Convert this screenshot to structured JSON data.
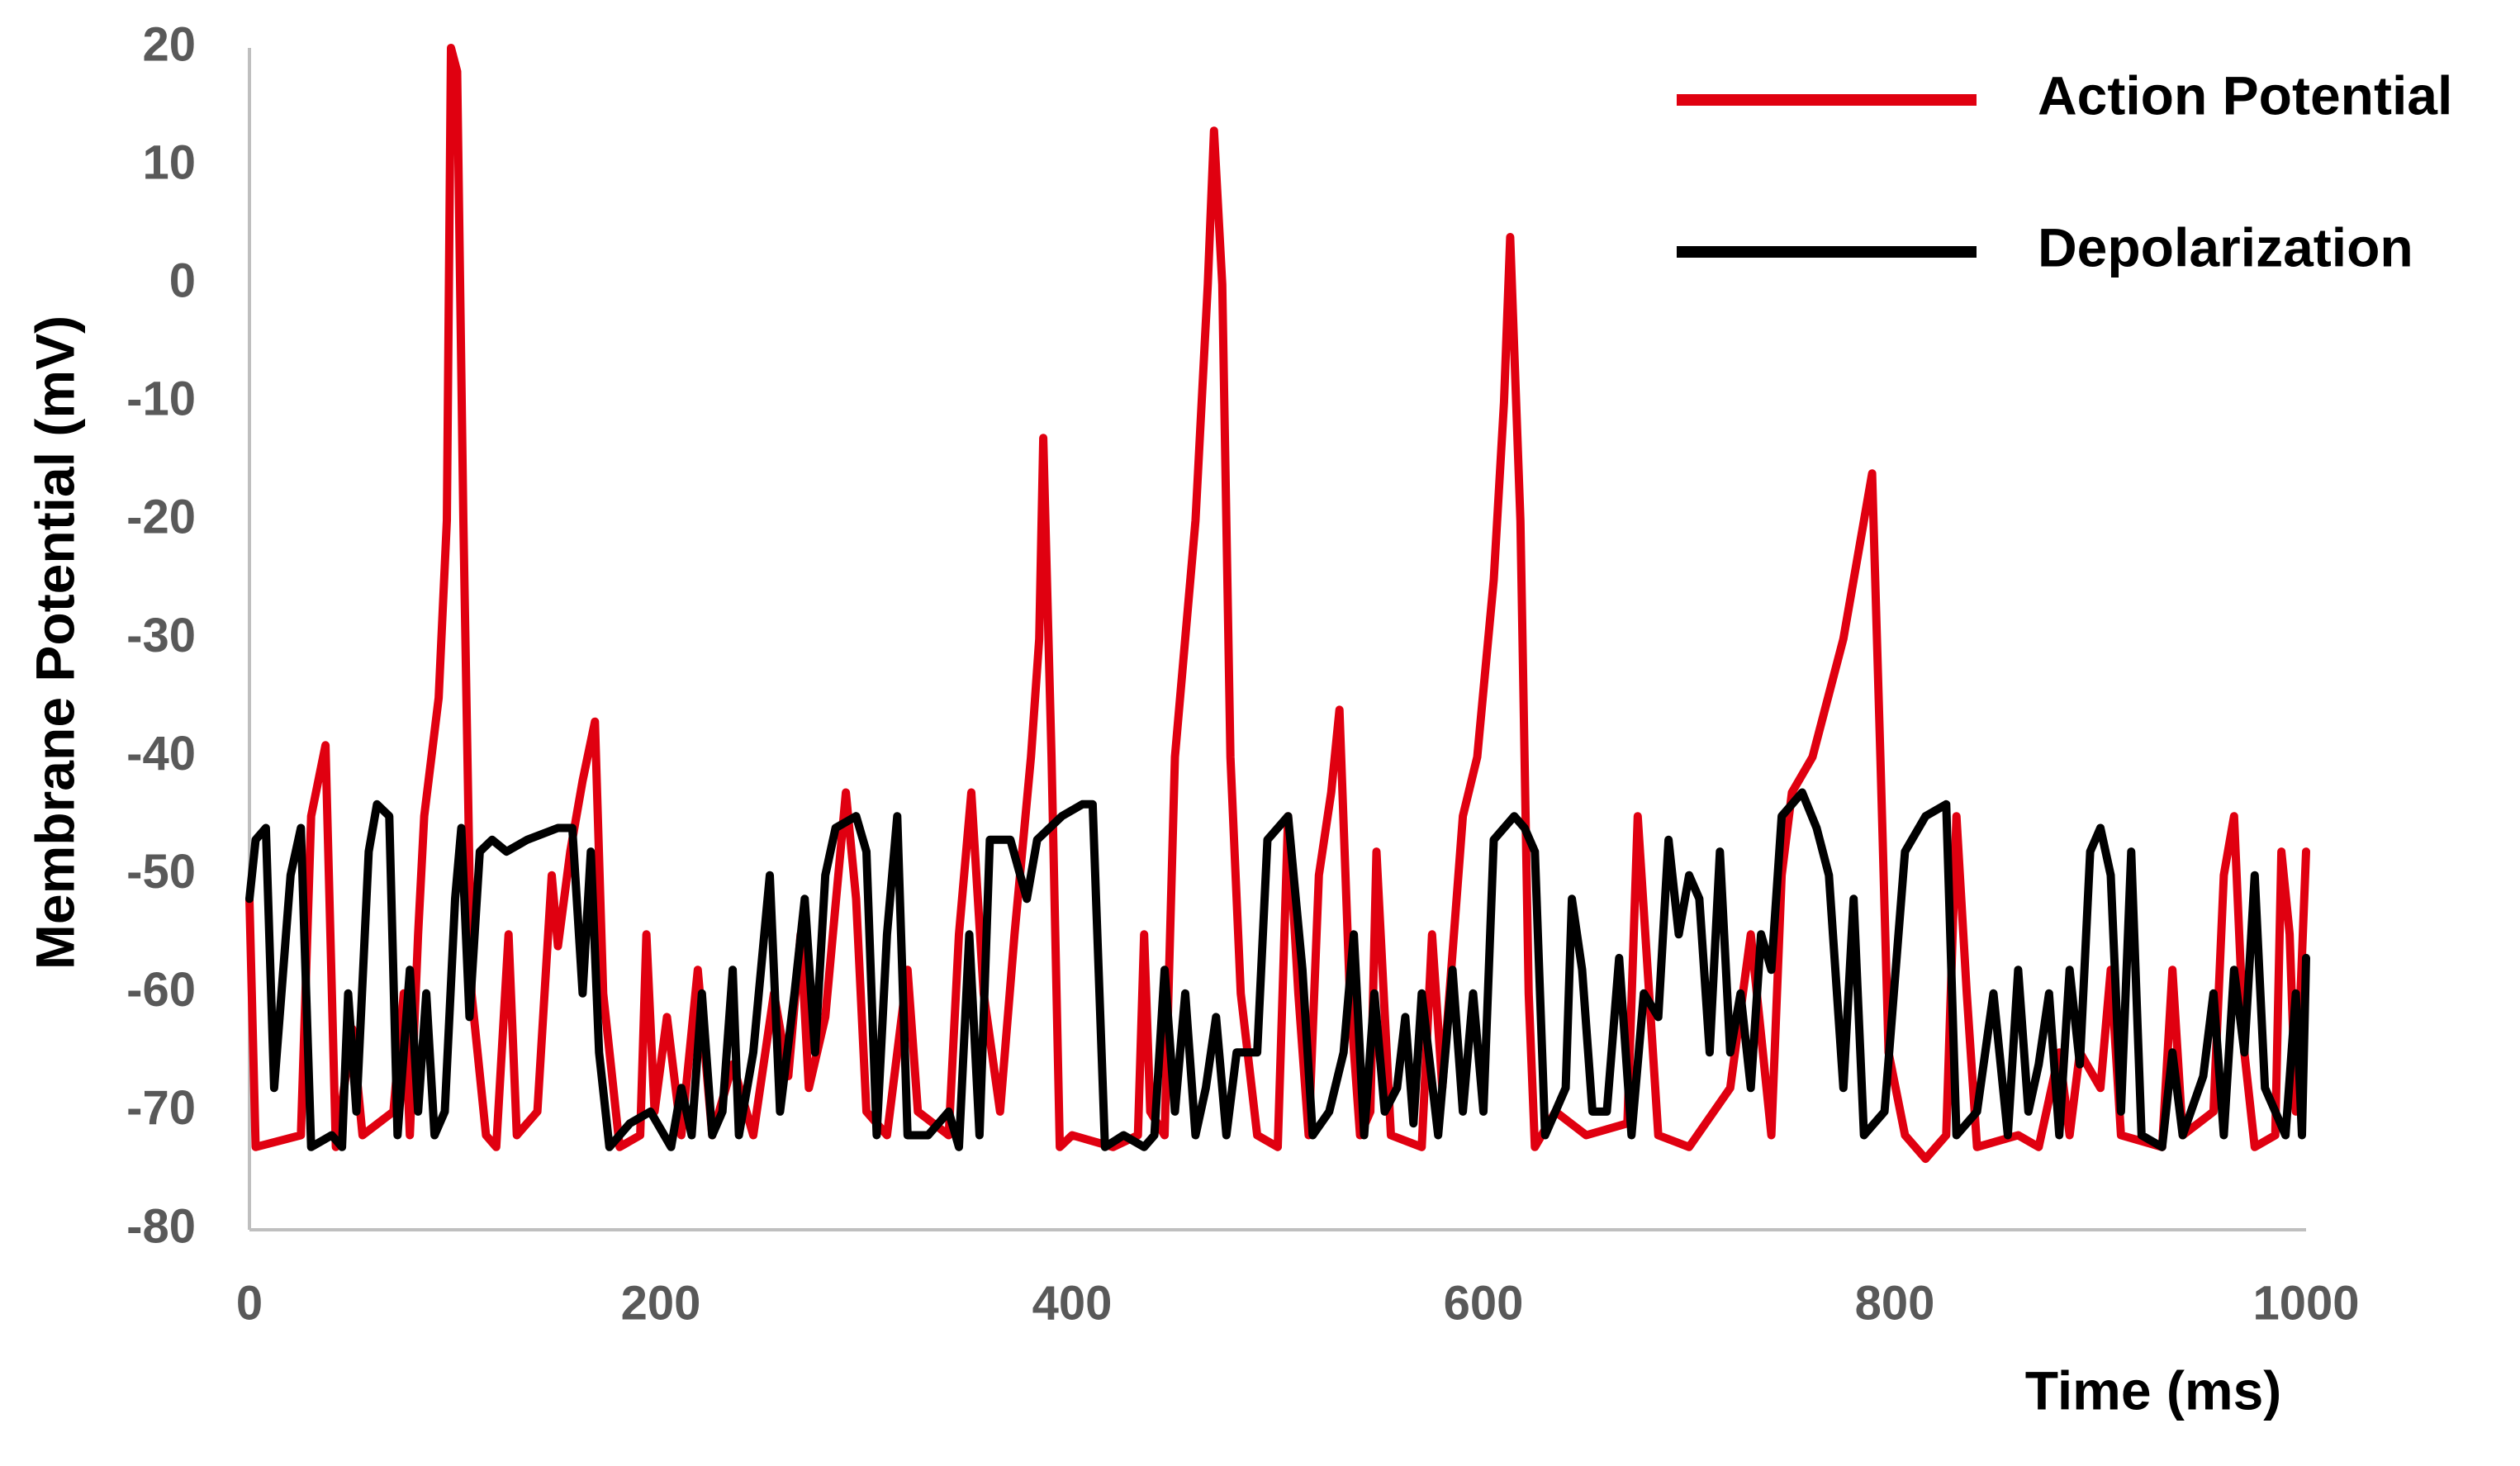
{
  "chart_data": {
    "type": "line",
    "xlabel": "Time (ms)",
    "ylabel": "Membrane Potential (mV)",
    "xlim": [
      0,
      1000
    ],
    "xticks": [
      0,
      200,
      400,
      600,
      800,
      1000
    ],
    "ylim": [
      -80,
      20
    ],
    "yticks": [
      -80,
      -70,
      -60,
      -50,
      -40,
      -30,
      -20,
      -10,
      0,
      10,
      20
    ],
    "grid": false,
    "legend": "upper right",
    "series": [
      {
        "name": "Action Potential",
        "color": "#e00010",
        "x": [
          0,
          3,
          25,
          30,
          37,
          42,
          50,
          55,
          70,
          75,
          78,
          82,
          85,
          92,
          96,
          98,
          101,
          104,
          108,
          115,
          120,
          126,
          130,
          140,
          147,
          150,
          156,
          162,
          168,
          172,
          180,
          190,
          193,
          197,
          203,
          210,
          218,
          225,
          235,
          245,
          255,
          262,
          268,
          272,
          280,
          290,
          295,
          300,
          310,
          320,
          325,
          340,
          345,
          351,
          357,
          365,
          372,
          380,
          384,
          386,
          390,
          394,
          400,
          420,
          432,
          435,
          438,
          445,
          450,
          460,
          466,
          469,
          473,
          477,
          482,
          490,
          500,
          505,
          510,
          515,
          520,
          526,
          530,
          535,
          540,
          545,
          548,
          555,
          570,
          575,
          580,
          590,
          597,
          605,
          610,
          613,
          618,
          622,
          625,
          635,
          650,
          670,
          675,
          685,
          700,
          720,
          730,
          740,
          745,
          750,
          760,
          775,
          785,
          789,
          793,
          797,
          805,
          815,
          825,
          830,
          835,
          840,
          860,
          870,
          880,
          885,
          890,
          900,
          905,
          910,
          930,
          935,
          940,
          955,
          960,
          965,
          970,
          975,
          985,
          988,
          992,
          995,
          1000
        ],
        "values": [
          -52,
          -73,
          -72,
          -45,
          -39,
          -73,
          -63,
          -72,
          -70,
          -60,
          -72,
          -55,
          -45,
          -35,
          -20,
          20,
          18,
          -20,
          -60,
          -72,
          -73,
          -55,
          -72,
          -70,
          -50,
          -56,
          -48,
          -42,
          -37,
          -60,
          -73,
          -72,
          -55,
          -70,
          -62,
          -72,
          -58,
          -72,
          -66,
          -72,
          -60,
          -67,
          -55,
          -68,
          -62,
          -43,
          -52,
          -70,
          -72,
          -58,
          -70,
          -72,
          -55,
          -43,
          -60,
          -70,
          -55,
          -40,
          -30,
          -13,
          -40,
          -73,
          -72,
          -73,
          -72,
          -55,
          -70,
          -72,
          -40,
          -20,
          0,
          13,
          0,
          -40,
          -60,
          -72,
          -73,
          -45,
          -60,
          -72,
          -50,
          -43,
          -36,
          -60,
          -72,
          -70,
          -48,
          -72,
          -73,
          -55,
          -68,
          -45,
          -40,
          -25,
          -10,
          4,
          -20,
          -60,
          -73,
          -70,
          -72,
          -71,
          -45,
          -72,
          -73,
          -68,
          -55,
          -72,
          -50,
          -43,
          -40,
          -30,
          -20,
          -16,
          -40,
          -65,
          -72,
          -74,
          -72,
          -45,
          -60,
          -73,
          -72,
          -73,
          -65,
          -72,
          -65,
          -68,
          -58,
          -72,
          -73,
          -58,
          -72,
          -70,
          -50,
          -45,
          -65,
          -73,
          -72,
          -48,
          -55,
          -70,
          -48
        ]
      },
      {
        "name": "Depolarization",
        "color": "#000000",
        "x": [
          0,
          3,
          8,
          12,
          20,
          25,
          30,
          40,
          45,
          48,
          52,
          58,
          62,
          68,
          72,
          78,
          82,
          86,
          90,
          95,
          100,
          103,
          107,
          112,
          118,
          125,
          135,
          150,
          157,
          162,
          166,
          170,
          175,
          185,
          195,
          205,
          210,
          215,
          220,
          225,
          230,
          235,
          238,
          245,
          253,
          258,
          265,
          270,
          275,
          280,
          285,
          295,
          300,
          305,
          310,
          315,
          320,
          330,
          340,
          345,
          350,
          355,
          360,
          370,
          378,
          383,
          395,
          405,
          410,
          416,
          425,
          435,
          440,
          445,
          450,
          455,
          460,
          465,
          470,
          475,
          480,
          490,
          495,
          505,
          512,
          517,
          525,
          532,
          537,
          542,
          547,
          552,
          558,
          562,
          566,
          570,
          578,
          585,
          590,
          595,
          600,
          605,
          615,
          620,
          625,
          630,
          640,
          643,
          648,
          653,
          660,
          666,
          672,
          678,
          685,
          690,
          695,
          700,
          705,
          710,
          715,
          720,
          725,
          730,
          735,
          740,
          745,
          755,
          762,
          768,
          775,
          780,
          785,
          795,
          805,
          815,
          825,
          830,
          840,
          848,
          855,
          860,
          865,
          870,
          875,
          880,
          885,
          890,
          895,
          900,
          905,
          910,
          915,
          920,
          930,
          935,
          940,
          950,
          955,
          960,
          965,
          970,
          975,
          980,
          985,
          990,
          995,
          998,
          1000
        ],
        "values": [
          -52,
          -47,
          -46,
          -68,
          -50,
          -46,
          -73,
          -72,
          -73,
          -60,
          -70,
          -48,
          -44,
          -45,
          -72,
          -58,
          -70,
          -60,
          -72,
          -70,
          -52,
          -46,
          -62,
          -48,
          -47,
          -48,
          -47,
          -46,
          -46,
          -60,
          -48,
          -65,
          -73,
          -71,
          -70,
          -73,
          -68,
          -72,
          -60,
          -72,
          -70,
          -58,
          -72,
          -65,
          -50,
          -70,
          -60,
          -52,
          -65,
          -50,
          -46,
          -45,
          -48,
          -72,
          -55,
          -45,
          -72,
          -72,
          -70,
          -73,
          -55,
          -72,
          -47,
          -47,
          -52,
          -47,
          -45,
          -44,
          -44,
          -73,
          -72,
          -73,
          -72,
          -58,
          -70,
          -60,
          -72,
          -68,
          -62,
          -72,
          -65,
          -65,
          -47,
          -45,
          -58,
          -72,
          -70,
          -65,
          -55,
          -72,
          -60,
          -70,
          -68,
          -62,
          -71,
          -60,
          -72,
          -58,
          -70,
          -60,
          -70,
          -47,
          -45,
          -46,
          -48,
          -72,
          -68,
          -52,
          -58,
          -70,
          -70,
          -57,
          -72,
          -60,
          -62,
          -47,
          -55,
          -50,
          -52,
          -65,
          -48,
          -65,
          -60,
          -68,
          -55,
          -58,
          -45,
          -43,
          -46,
          -50,
          -68,
          -52,
          -72,
          -70,
          -48,
          -45,
          -44,
          -72,
          -70,
          -60,
          -72,
          -58,
          -70,
          -66,
          -60,
          -72,
          -58,
          -66,
          -48,
          -46,
          -50,
          -70,
          -48,
          -72,
          -73,
          -65,
          -72,
          -67,
          -60,
          -72,
          -58,
          -65,
          -50,
          -68,
          -70,
          -72,
          -60,
          -72,
          -57
        ]
      }
    ]
  }
}
